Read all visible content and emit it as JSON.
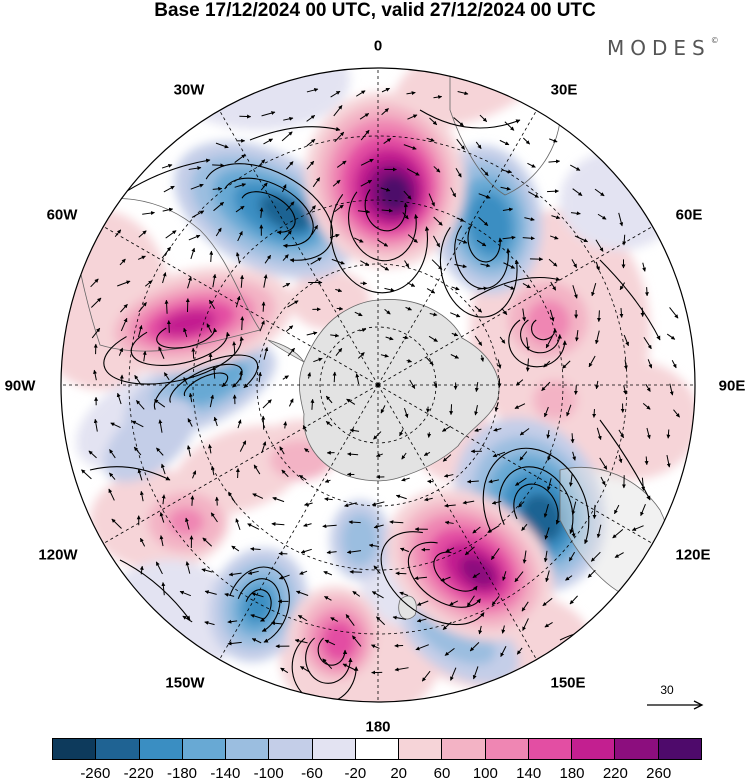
{
  "title": "Base 17/12/2024 00 UTC, valid 27/12/2024 00 UTC",
  "logo": "MODES",
  "logo_mark": "©",
  "longitude_labels": [
    "0",
    "30E",
    "60E",
    "90E",
    "120E",
    "150E",
    "180",
    "150W",
    "120W",
    "90W",
    "60W",
    "30W"
  ],
  "vector_scale_label": "30",
  "colorbar": {
    "ticks": [
      "-260",
      "-220",
      "-180",
      "-140",
      "-100",
      "-60",
      "-20",
      "20",
      "60",
      "100",
      "140",
      "180",
      "220",
      "260"
    ],
    "colors": [
      "#0d3a5c",
      "#1f6393",
      "#3a8ec2",
      "#68a9d4",
      "#9bbee0",
      "#c4cee8",
      "#e3e3f2",
      "#ffffff",
      "#f6d4d8",
      "#f3b3c5",
      "#ef86b3",
      "#e34ea3",
      "#c31f90",
      "#8c0e7e",
      "#4e0a6b"
    ]
  },
  "colors": {
    "land": "#e3e3e3",
    "coast": "#666666",
    "grid": "#000000"
  }
}
